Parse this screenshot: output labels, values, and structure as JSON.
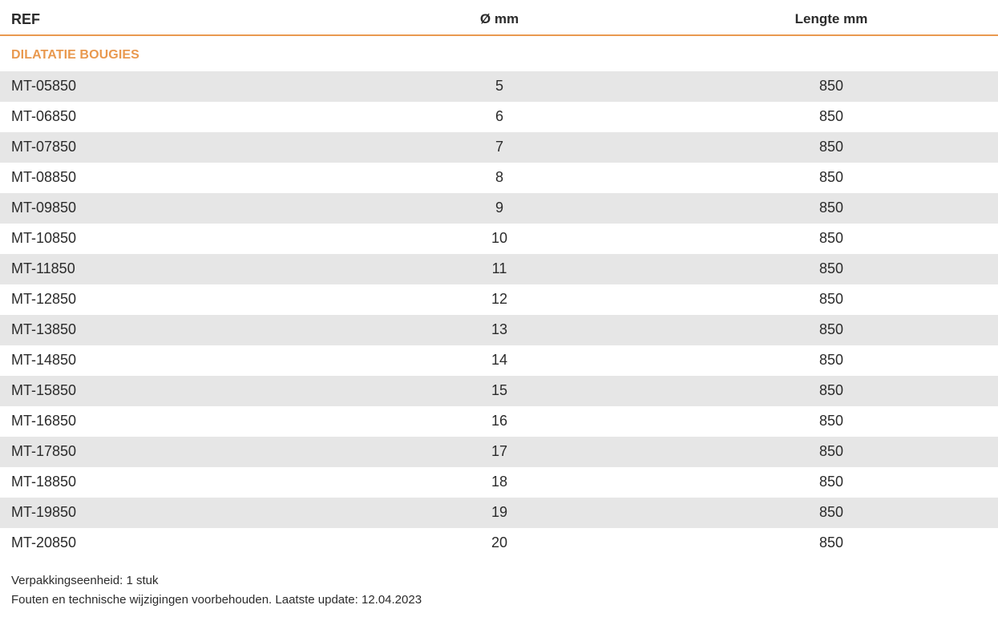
{
  "table": {
    "headers": {
      "ref": "REF",
      "diameter": "Ø mm",
      "length": "Lengte mm"
    },
    "section_title": "DILATATIE BOUGIES",
    "rows": [
      {
        "ref": "MT-05850",
        "diameter": "5",
        "length": "850"
      },
      {
        "ref": "MT-06850",
        "diameter": "6",
        "length": "850"
      },
      {
        "ref": "MT-07850",
        "diameter": "7",
        "length": "850"
      },
      {
        "ref": "MT-08850",
        "diameter": "8",
        "length": "850"
      },
      {
        "ref": "MT-09850",
        "diameter": "9",
        "length": "850"
      },
      {
        "ref": "MT-10850",
        "diameter": "10",
        "length": "850"
      },
      {
        "ref": "MT-11850",
        "diameter": "11",
        "length": "850"
      },
      {
        "ref": "MT-12850",
        "diameter": "12",
        "length": "850"
      },
      {
        "ref": "MT-13850",
        "diameter": "13",
        "length": "850"
      },
      {
        "ref": "MT-14850",
        "diameter": "14",
        "length": "850"
      },
      {
        "ref": "MT-15850",
        "diameter": "15",
        "length": "850"
      },
      {
        "ref": "MT-16850",
        "diameter": "16",
        "length": "850"
      },
      {
        "ref": "MT-17850",
        "diameter": "17",
        "length": "850"
      },
      {
        "ref": "MT-18850",
        "diameter": "18",
        "length": "850"
      },
      {
        "ref": "MT-19850",
        "diameter": "19",
        "length": "850"
      },
      {
        "ref": "MT-20850",
        "diameter": "20",
        "length": "850"
      }
    ]
  },
  "footer": {
    "packaging": "Verpakkingseenheid: 1 stuk",
    "disclaimer": "Fouten en technische wijzigingen voorbehouden. Laatste update: 12.04.2023"
  },
  "colors": {
    "accent": "#e9994f",
    "row_shade": "#e6e6e6",
    "text": "#2b2b2b"
  }
}
